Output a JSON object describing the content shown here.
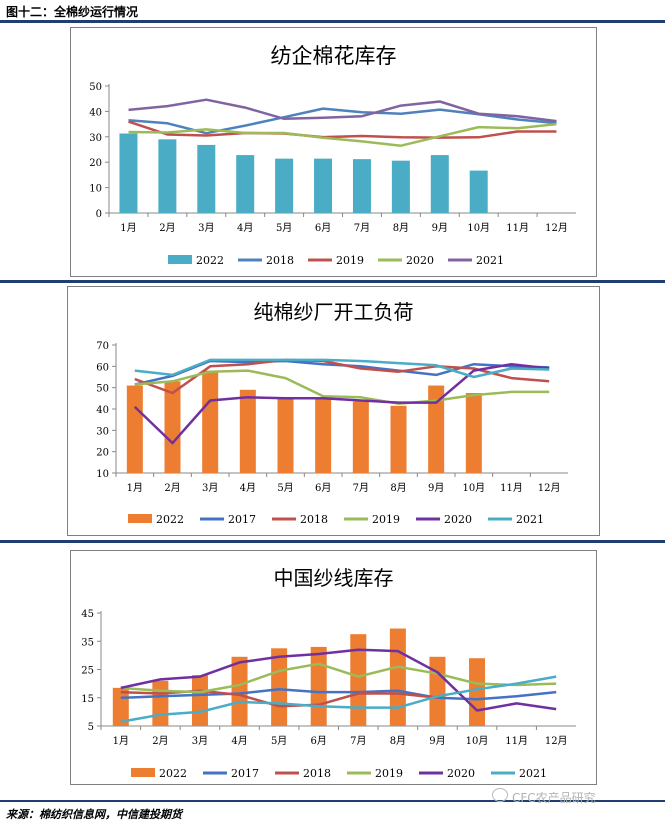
{
  "figure_title": "图十二：全棉纱运行情况",
  "source": "来源：棉纺织信息网，中信建投期货",
  "watermark": "CFC农产品研究",
  "watermark_icon": "wechat-icon",
  "chart_data": [
    {
      "type": "bar+line",
      "title": "纺企棉花库存",
      "categories": [
        "1月",
        "2月",
        "3月",
        "4月",
        "5月",
        "6月",
        "7月",
        "8月",
        "9月",
        "10月",
        "11月",
        "12月"
      ],
      "ylim": [
        0,
        50
      ],
      "yticks": [
        0,
        10,
        20,
        30,
        40,
        50
      ],
      "grid": false,
      "legend_position": "bottom",
      "bar_series": {
        "name": "2022",
        "color": "#4bacc6",
        "values": [
          31.3,
          29,
          26.8,
          22.8,
          21.4,
          21.4,
          21.2,
          20.6,
          22.8,
          16.7,
          null,
          null
        ]
      },
      "series": [
        {
          "name": "2018",
          "color": "#4f81bd",
          "values": [
            36.5,
            35.3,
            31.4,
            34.4,
            37.7,
            41.1,
            39.7,
            39.1,
            40.7,
            38.9,
            36.8,
            35.4
          ]
        },
        {
          "name": "2019",
          "color": "#c0504d",
          "values": [
            36.0,
            30.9,
            30.5,
            31.5,
            31.3,
            29.9,
            30.3,
            29.8,
            29.7,
            29.8,
            32.1,
            32.1
          ]
        },
        {
          "name": "2020",
          "color": "#9bbb59",
          "values": [
            31.9,
            31.7,
            32.9,
            31.5,
            31.5,
            29.6,
            28.2,
            26.5,
            30.2,
            33.8,
            33.4,
            35.0
          ]
        },
        {
          "name": "2021",
          "color": "#8064a2",
          "values": [
            40.6,
            42.1,
            44.6,
            41.5,
            37.1,
            37.5,
            38.1,
            42.3,
            43.9,
            39.1,
            38.1,
            36.2
          ]
        }
      ]
    },
    {
      "type": "bar+line",
      "title": "纯棉纱厂开工负荷",
      "categories": [
        "1月",
        "2月",
        "3月",
        "4月",
        "5月",
        "6月",
        "7月",
        "8月",
        "9月",
        "10月",
        "11月",
        "12月"
      ],
      "ylim": [
        10,
        70
      ],
      "yticks": [
        10,
        20,
        30,
        40,
        50,
        60,
        70
      ],
      "grid": false,
      "legend_position": "bottom",
      "bar_series": {
        "name": "2022",
        "color": "#ed7d31",
        "values": [
          51,
          53,
          58,
          49,
          45.5,
          44.5,
          43.5,
          41.5,
          51,
          47.5,
          null,
          null
        ]
      },
      "series": [
        {
          "name": "2017",
          "color": "#4472c4",
          "values": [
            51.5,
            55.5,
            62.5,
            62,
            62.5,
            61,
            60,
            58,
            56,
            61,
            60,
            59.5
          ]
        },
        {
          "name": "2018",
          "color": "#c0504d",
          "values": [
            54,
            47.5,
            60,
            61,
            63,
            62.5,
            59,
            57.5,
            60,
            59,
            54.5,
            53
          ]
        },
        {
          "name": "2019",
          "color": "#9bbb59",
          "values": [
            51.5,
            53,
            57.5,
            58,
            54.5,
            46,
            45.5,
            42.5,
            44,
            46.5,
            48,
            48
          ]
        },
        {
          "name": "2020",
          "color": "#7030a0",
          "values": [
            41,
            24,
            44,
            45.5,
            45,
            45,
            44,
            43,
            43,
            58,
            61,
            59
          ]
        },
        {
          "name": "2021",
          "color": "#4bacc6",
          "values": [
            58,
            56,
            63,
            63,
            63,
            63,
            62.5,
            61.5,
            60.5,
            55,
            59,
            58.5
          ]
        }
      ]
    },
    {
      "type": "bar+line",
      "title": "中国纱线库存",
      "categories": [
        "1月",
        "2月",
        "3月",
        "4月",
        "5月",
        "6月",
        "7月",
        "8月",
        "9月",
        "10月",
        "11月",
        "12月"
      ],
      "ylim": [
        5,
        45
      ],
      "yticks": [
        5,
        15,
        25,
        35,
        45
      ],
      "grid": false,
      "legend_position": "bottom",
      "bar_series": {
        "name": "2022",
        "color": "#ed7d31",
        "values": [
          18.5,
          21,
          23,
          29.5,
          32.5,
          33,
          37.5,
          39.5,
          29.5,
          29,
          null,
          null
        ]
      },
      "series": [
        {
          "name": "2017",
          "color": "#4472c4",
          "values": [
            15,
            15.5,
            16,
            16.5,
            18,
            17,
            17,
            17.5,
            15,
            14.5,
            15.5,
            17
          ]
        },
        {
          "name": "2018",
          "color": "#c0504d",
          "values": [
            17,
            16.5,
            17.5,
            16,
            12,
            12.5,
            16.5,
            16.5,
            15,
            null,
            null,
            null
          ]
        },
        {
          "name": "2019",
          "color": "#9bbb59",
          "values": [
            18.5,
            17.5,
            17,
            19.5,
            24.5,
            27,
            22.5,
            26,
            23.5,
            20,
            19.5,
            20
          ]
        },
        {
          "name": "2020",
          "color": "#7030a0",
          "values": [
            18.5,
            21.5,
            22.5,
            27.5,
            29.5,
            30.5,
            32,
            31.5,
            24,
            10.5,
            13,
            11
          ]
        },
        {
          "name": "2021",
          "color": "#4bacc6",
          "values": [
            6.5,
            9,
            10,
            13.5,
            13,
            12,
            11.5,
            11.5,
            15.5,
            18,
            20,
            22.5
          ]
        }
      ]
    }
  ]
}
